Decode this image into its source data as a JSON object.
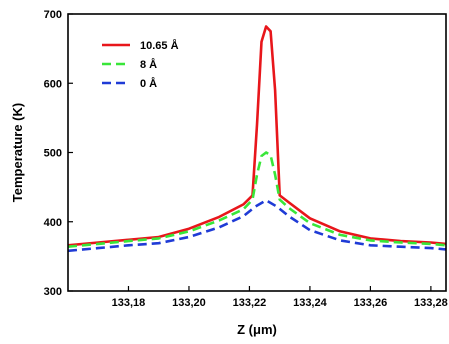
{
  "chart_data": {
    "type": "line",
    "xlabel": "Z (μm)",
    "ylabel": "Temperature (K)",
    "xlim": [
      133.16,
      133.285
    ],
    "ylim": [
      300,
      700
    ],
    "xticks": [
      133.18,
      133.2,
      133.22,
      133.24,
      133.26,
      133.28
    ],
    "xtick_labels": [
      "133,18",
      "133,20",
      "133,22",
      "133,24",
      "133,26",
      "133,28"
    ],
    "yticks": [
      300,
      400,
      500,
      600,
      700
    ],
    "ytick_labels": [
      "300",
      "400",
      "500",
      "600",
      "700"
    ],
    "legend_position": "top-left",
    "series": [
      {
        "name": "10.65 Å",
        "color": "#e8161b",
        "style": "solid",
        "x": [
          133.16,
          133.17,
          133.18,
          133.19,
          133.2,
          133.21,
          133.218,
          133.221,
          133.2225,
          133.224,
          133.2255,
          133.227,
          133.2285,
          133.23,
          133.233,
          133.24,
          133.25,
          133.26,
          133.27,
          133.28,
          133.285
        ],
        "y": [
          366,
          370,
          374,
          378,
          390,
          407,
          425,
          438,
          540,
          660,
          682,
          675,
          590,
          438,
          428,
          405,
          386,
          376,
          372,
          370,
          368
        ]
      },
      {
        "name": "8 Å",
        "color": "#39e639",
        "style": "dashed",
        "x": [
          133.16,
          133.17,
          133.18,
          133.19,
          133.2,
          133.21,
          133.218,
          133.221,
          133.2225,
          133.224,
          133.2255,
          133.227,
          133.2285,
          133.23,
          133.233,
          133.24,
          133.25,
          133.26,
          133.27,
          133.28,
          133.285
        ],
        "y": [
          364,
          368,
          372,
          376,
          386,
          402,
          418,
          432,
          468,
          495,
          500,
          496,
          468,
          432,
          420,
          398,
          381,
          373,
          370,
          368,
          366
        ]
      },
      {
        "name": "0 Å",
        "color": "#1f3bd6",
        "style": "dashed",
        "x": [
          133.16,
          133.17,
          133.18,
          133.19,
          133.2,
          133.21,
          133.218,
          133.222,
          133.2255,
          133.229,
          133.233,
          133.24,
          133.25,
          133.26,
          133.27,
          133.28,
          133.285
        ],
        "y": [
          358,
          362,
          366,
          369,
          378,
          392,
          408,
          422,
          431,
          422,
          408,
          388,
          373,
          366,
          364,
          362,
          360
        ]
      }
    ]
  }
}
